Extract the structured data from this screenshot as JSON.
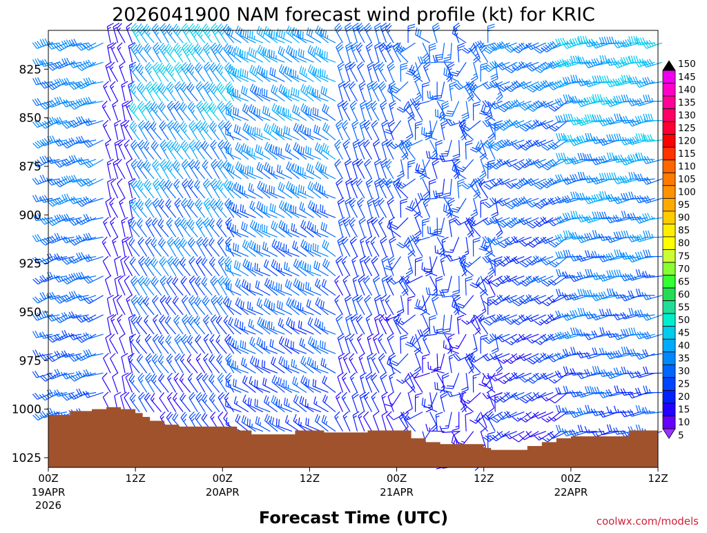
{
  "chart_data": {
    "type": "wind-barb time-height",
    "title": "2026041900 NAM forecast wind profile (kt) for KRIC",
    "xlabel": "Forecast Time (UTC)",
    "credit": "coolwx.com/models",
    "y_axis": {
      "units": "hPa",
      "range": [
        805,
        1030
      ],
      "ticks": [
        {
          "value": 825,
          "label": "825"
        },
        {
          "value": 850,
          "label": "850"
        },
        {
          "value": 875,
          "label": "875"
        },
        {
          "value": 900,
          "label": "900"
        },
        {
          "value": 925,
          "label": "925"
        },
        {
          "value": 950,
          "label": "950"
        },
        {
          "value": 975,
          "label": "975"
        },
        {
          "value": 1000,
          "label": "1000"
        },
        {
          "value": 1025,
          "label": "1025"
        }
      ]
    },
    "x_axis": {
      "units": "forecast hour",
      "range": [
        0,
        84
      ],
      "ticks": [
        {
          "hour": 0,
          "label": "00Z",
          "date": "19APR",
          "year": "2026"
        },
        {
          "hour": 12,
          "label": "12Z",
          "date": "",
          "year": ""
        },
        {
          "hour": 24,
          "label": "00Z",
          "date": "20APR",
          "year": ""
        },
        {
          "hour": 36,
          "label": "12Z",
          "date": "",
          "year": ""
        },
        {
          "hour": 48,
          "label": "00Z",
          "date": "21APR",
          "year": ""
        },
        {
          "hour": 60,
          "label": "12Z",
          "date": "",
          "year": ""
        },
        {
          "hour": 72,
          "label": "00Z",
          "date": "22APR",
          "year": ""
        },
        {
          "hour": 84,
          "label": "12Z",
          "date": "",
          "year": ""
        }
      ]
    },
    "colorbar": {
      "units": "kt",
      "levels": [
        {
          "label": "150",
          "color": "#000000"
        },
        {
          "label": "145",
          "color": "#ee00ee"
        },
        {
          "label": "140",
          "color": "#ff00c8"
        },
        {
          "label": "135",
          "color": "#ff0096"
        },
        {
          "label": "130",
          "color": "#ff0064"
        },
        {
          "label": "125",
          "color": "#ff0032"
        },
        {
          "label": "120",
          "color": "#ff0000"
        },
        {
          "label": "115",
          "color": "#ff3300"
        },
        {
          "label": "110",
          "color": "#ff6600"
        },
        {
          "label": "105",
          "color": "#ff7a00"
        },
        {
          "label": "100",
          "color": "#ff9200"
        },
        {
          "label": "95",
          "color": "#ffaa00"
        },
        {
          "label": "90",
          "color": "#ffcc00"
        },
        {
          "label": "85",
          "color": "#ffee00"
        },
        {
          "label": "80",
          "color": "#ffff00"
        },
        {
          "label": "75",
          "color": "#ccff33"
        },
        {
          "label": "70",
          "color": "#88ff33"
        },
        {
          "label": "65",
          "color": "#33ff33"
        },
        {
          "label": "60",
          "color": "#22dd55"
        },
        {
          "label": "55",
          "color": "#22dd99"
        },
        {
          "label": "50",
          "color": "#00eecc"
        },
        {
          "label": "45",
          "color": "#00ccee"
        },
        {
          "label": "40",
          "color": "#00aaff"
        },
        {
          "label": "35",
          "color": "#0088ff"
        },
        {
          "label": "30",
          "color": "#0066ff"
        },
        {
          "label": "25",
          "color": "#0044ff"
        },
        {
          "label": "20",
          "color": "#0022ff"
        },
        {
          "label": "15",
          "color": "#2200ff"
        },
        {
          "label": "10",
          "color": "#6600ff"
        },
        {
          "label": "5",
          "color": "#9933ff"
        }
      ]
    },
    "terrain": {
      "color": "#a0522d",
      "surface_pressure": [
        [
          0,
          1003
        ],
        [
          3,
          1001
        ],
        [
          6,
          1000
        ],
        [
          8,
          999
        ],
        [
          10,
          1000
        ],
        [
          12,
          1002
        ],
        [
          13,
          1004
        ],
        [
          14,
          1006
        ],
        [
          16,
          1008
        ],
        [
          18,
          1009
        ],
        [
          20,
          1009
        ],
        [
          24,
          1009
        ],
        [
          26,
          1011
        ],
        [
          28,
          1013
        ],
        [
          30,
          1013
        ],
        [
          34,
          1011
        ],
        [
          38,
          1012
        ],
        [
          42,
          1012
        ],
        [
          44,
          1011
        ],
        [
          48,
          1011
        ],
        [
          50,
          1015
        ],
        [
          52,
          1017
        ],
        [
          54,
          1018
        ],
        [
          58,
          1018
        ],
        [
          60,
          1020
        ],
        [
          61,
          1021
        ],
        [
          64,
          1021
        ],
        [
          66,
          1019
        ],
        [
          68,
          1017
        ],
        [
          70,
          1015
        ],
        [
          72,
          1014
        ],
        [
          76,
          1014
        ],
        [
          80,
          1011
        ],
        [
          84,
          1011
        ]
      ]
    },
    "wind_columns": {
      "hours": [
        0,
        1,
        2,
        3,
        4,
        5,
        6,
        7,
        8,
        9,
        10,
        11,
        12,
        13,
        14,
        15,
        16,
        17,
        18,
        19,
        20,
        21,
        22,
        23,
        24,
        25,
        26,
        27,
        28,
        29,
        30,
        31,
        32,
        33,
        34,
        35,
        36,
        37,
        38,
        39,
        40,
        41,
        42,
        43,
        44,
        45,
        46,
        47,
        48,
        49,
        50,
        51,
        52,
        53,
        54,
        55,
        56,
        57,
        58,
        59,
        60,
        61,
        62,
        63,
        64,
        65,
        66,
        67,
        68,
        69,
        70,
        71,
        72,
        73,
        74,
        75,
        76,
        77,
        78,
        79,
        80,
        81,
        82,
        83,
        84
      ],
      "levels_hpa": [
        810,
        820,
        830,
        840,
        850,
        860,
        870,
        880,
        890,
        900,
        910,
        920,
        930,
        940,
        950,
        960,
        970,
        980,
        990,
        1000,
        1010,
        1020
      ],
      "note": "Speed (kt) and direction (deg, from) regimes estimated by time period; see periods.",
      "periods": [
        {
          "from_hour": 0,
          "to_hour": 8,
          "dir_low": 240,
          "dir_high": 260,
          "spd_low": 20,
          "spd_high": 35
        },
        {
          "from_hour": 8,
          "to_hour": 12,
          "dir_low": 330,
          "dir_high": 350,
          "spd_low": 10,
          "spd_high": 15
        },
        {
          "from_hour": 12,
          "to_hour": 26,
          "dir_low": 320,
          "dir_high": 330,
          "spd_low": 10,
          "spd_high": 45
        },
        {
          "from_hour": 26,
          "to_hour": 40,
          "dir_low": 290,
          "dir_high": 310,
          "spd_low": 15,
          "spd_high": 40
        },
        {
          "from_hour": 40,
          "to_hour": 48,
          "dir_low": 330,
          "dir_high": 345,
          "spd_low": 10,
          "spd_high": 30
        },
        {
          "from_hour": 48,
          "to_hour": 62,
          "dir_low": 150,
          "dir_high": 360,
          "spd_low": 10,
          "spd_high": 30
        },
        {
          "from_hour": 62,
          "to_hour": 72,
          "dir_low": 230,
          "dir_high": 250,
          "spd_low": 10,
          "spd_high": 35
        },
        {
          "from_hour": 72,
          "to_hour": 84,
          "dir_low": 250,
          "dir_high": 270,
          "spd_low": 15,
          "spd_high": 45
        }
      ]
    }
  }
}
